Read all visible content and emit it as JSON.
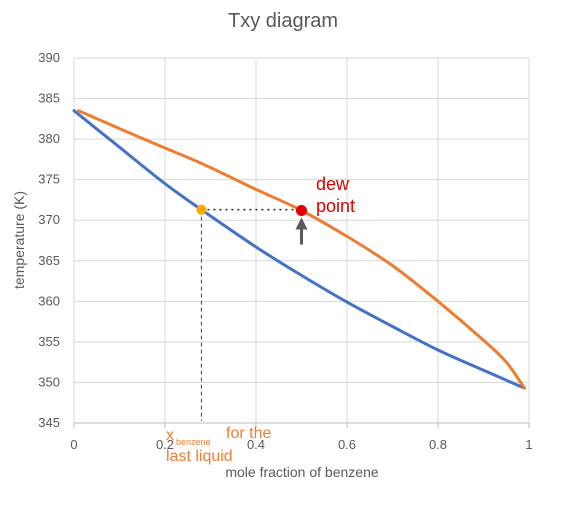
{
  "chart_data": {
    "type": "line",
    "title": "Txy diagram",
    "xlabel": "mole fraction of benzene",
    "ylabel": "temperature (K)",
    "xlim": [
      0,
      1
    ],
    "ylim": [
      345,
      390
    ],
    "xticks": [
      0,
      0.2,
      0.4,
      0.6,
      0.8,
      1
    ],
    "xtick_labels": [
      "0",
      "0.2",
      "0.4",
      "0.6",
      "0.8",
      "1"
    ],
    "yticks": [
      345,
      350,
      355,
      360,
      365,
      370,
      375,
      380,
      385,
      390
    ],
    "grid": true,
    "legend": "none",
    "series": [
      {
        "color": "#4472C4",
        "x": [
          0,
          0.1,
          0.2,
          0.28,
          0.4,
          0.5,
          0.6,
          0.7,
          0.8,
          0.9,
          0.99
        ],
        "y": [
          383.5,
          379.0,
          374.5,
          371.3,
          366.7,
          363.2,
          359.9,
          356.9,
          354.0,
          351.5,
          349.3
        ]
      },
      {
        "color": "#ED7D31",
        "x": [
          0.01,
          0.1,
          0.2,
          0.28,
          0.4,
          0.5,
          0.6,
          0.7,
          0.8,
          0.9,
          0.95,
          0.99
        ],
        "y": [
          383.5,
          381.3,
          378.9,
          377.0,
          373.8,
          371.2,
          368.0,
          364.4,
          360.0,
          355.2,
          352.5,
          349.3
        ]
      }
    ],
    "annotations": {
      "liquid_point": {
        "x": 0.28,
        "y": 371.3,
        "color": "#FFA500"
      },
      "dew_point": {
        "x": 0.5,
        "y": 371.2,
        "color": "#E00000"
      },
      "dew_label": [
        "dew",
        "point"
      ],
      "dew_label_color": "#E00000",
      "liquid_label_x": "x",
      "liquid_label_sub": "benzene",
      "liquid_label_rest": "for the",
      "liquid_label_line2": "last liquid",
      "liquid_label_color": "#ED7D31",
      "arrow_color": "#595959"
    }
  }
}
